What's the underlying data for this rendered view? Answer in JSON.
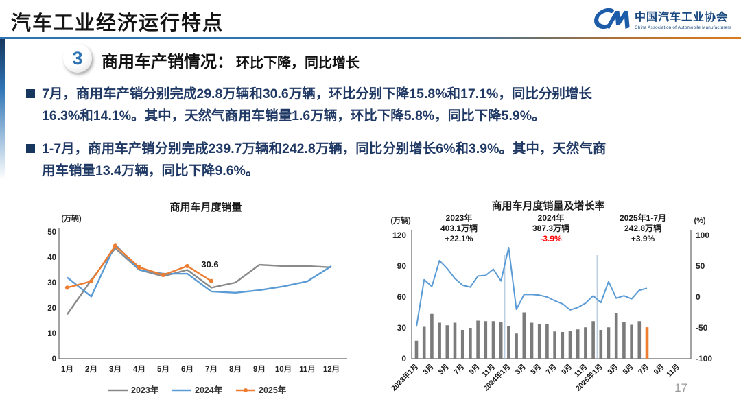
{
  "header": {
    "title": "汽车工业经济运行特点",
    "logo": {
      "mark": "CM",
      "org_cn": "中国汽车工业协会",
      "org_en": "China Association of Automobile Manufacturers"
    }
  },
  "section": {
    "number": "3",
    "title": "商用车产销情况：",
    "subtitle": "环比下降，同比增长"
  },
  "bullets": [
    {
      "lines": [
        "7月，商用车产销分别完成29.8万辆和30.6万辆，环比分别下降15.8%和17.1%，同比分别增长",
        "16.3%和14.1%。其中，天然气商用车销量1.6万辆，环比下降5.8%，同比下降5.9%。"
      ]
    },
    {
      "lines": [
        "1-7月，商用车产销分别完成239.7万辆和242.8万辆，同比分别增长6%和3.9%。其中，天然气商",
        "用车销量13.4万辆，同比下降9.6%。"
      ]
    }
  ],
  "page_number": "17",
  "colors": {
    "accent_blue": "#2E74B5",
    "navy_text": "#1F3864",
    "series_gray": "#8A8A8A",
    "series_blue": "#5B9BD5",
    "series_orange": "#ED7D31",
    "bar_gray": "#7b7b7b",
    "negative_red": "#FF0000"
  },
  "chart_data": [
    {
      "type": "line",
      "title": "商用车月度销量",
      "ylabel": "(万辆)",
      "ylim": [
        0,
        50
      ],
      "yticks": [
        0,
        10,
        20,
        30,
        40,
        50
      ],
      "categories": [
        "1月",
        "2月",
        "3月",
        "4月",
        "5月",
        "6月",
        "7月",
        "8月",
        "9月",
        "10月",
        "11月",
        "12月"
      ],
      "grid": false,
      "legend_position": "bottom",
      "series": [
        {
          "name": "2023年",
          "color": "#8A8A8A",
          "marker": false,
          "values": [
            17.5,
            31,
            43.5,
            35,
            32.5,
            35,
            28,
            30,
            37,
            36.5,
            36.5,
            36
          ]
        },
        {
          "name": "2024年",
          "color": "#5B9BD5",
          "marker": false,
          "values": [
            32,
            24.5,
            45,
            35,
            33.5,
            33.5,
            26.5,
            26,
            27,
            28.5,
            30.5,
            36.5
          ]
        },
        {
          "name": "2025年",
          "color": "#ED7D31",
          "marker": true,
          "values": [
            28,
            30.5,
            44.5,
            36,
            33,
            36.5,
            30.6
          ]
        }
      ],
      "point_label": {
        "series_index": 2,
        "point_index": 6,
        "text": "30.6"
      }
    },
    {
      "type": "bar+line",
      "title": "商用车月度销量及增长率",
      "ylabel_left": "(万辆)",
      "ylabel_right": "(%)",
      "ylim_left": [
        0,
        120
      ],
      "yticks_left": [
        0,
        30,
        60,
        90,
        120
      ],
      "ylim_right": [
        -100,
        100
      ],
      "yticks_right": [
        100,
        50,
        0,
        -50,
        -100
      ],
      "x_total_months": 36,
      "x_tick_labels": [
        "2023年1月",
        "3月",
        "5月",
        "7月",
        "9月",
        "11月",
        "2024年1月",
        "3月",
        "5月",
        "7月",
        "9月",
        "11月",
        "2025年1月",
        "3月",
        "5月",
        "7月",
        "9月",
        "11月"
      ],
      "year_dividers_after_index": [
        11,
        23
      ],
      "bars": {
        "color": "#7b7b7b",
        "highlight_index": 30,
        "highlight_color": "#ED7D31",
        "values": [
          17.5,
          31,
          43.5,
          35,
          32.5,
          35,
          28,
          30,
          37,
          36.5,
          36.5,
          36,
          32,
          24.5,
          45,
          35,
          33.5,
          33.5,
          26.5,
          26,
          27,
          28.5,
          30.5,
          36.5,
          28,
          30.5,
          44.5,
          36,
          33,
          36.5,
          30.6
        ]
      },
      "line": {
        "color": "#5B9BD5",
        "values": [
          -48,
          28,
          17,
          59,
          46,
          30,
          19,
          16,
          34,
          35,
          45,
          26,
          80,
          -20,
          4,
          4,
          3,
          0,
          -6,
          -11,
          -21,
          -17,
          -10,
          2,
          -9,
          25,
          -2,
          2,
          -3,
          11,
          14
        ]
      },
      "annotations": [
        {
          "lines": [
            "2023年",
            "403.1万辆",
            "+22.1%"
          ],
          "line_colors": [
            "#1a1a1a",
            "#1a1a1a",
            "#1a1a1a"
          ]
        },
        {
          "lines": [
            "2024年",
            "387.3万辆",
            "-3.9%"
          ],
          "line_colors": [
            "#1a1a1a",
            "#1a1a1a",
            "#FF0000"
          ]
        },
        {
          "lines": [
            "2025年1-7月",
            "242.8万辆",
            "+3.9%"
          ],
          "line_colors": [
            "#1a1a1a",
            "#1a1a1a",
            "#1a1a1a"
          ]
        }
      ]
    }
  ]
}
